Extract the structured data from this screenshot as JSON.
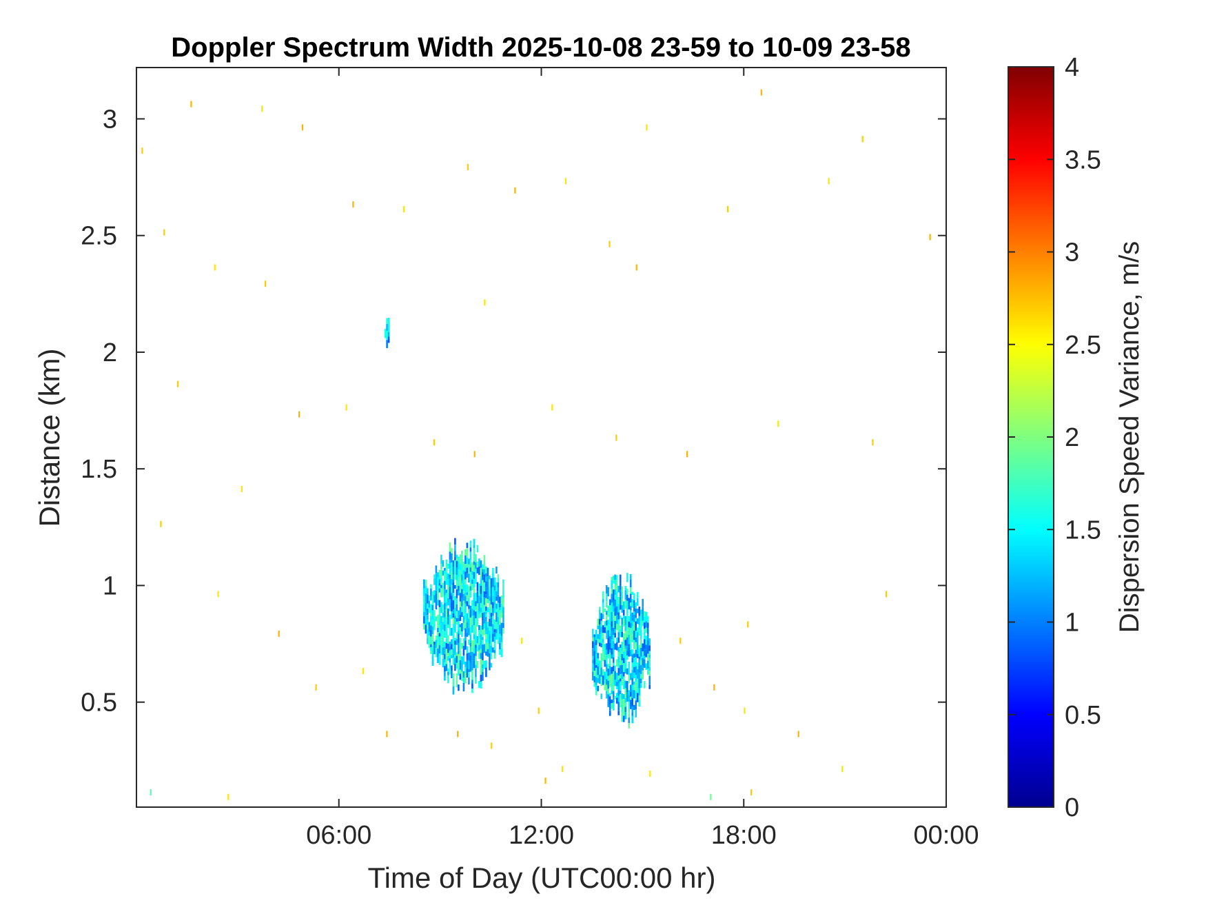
{
  "chart_data": {
    "type": "heatmap",
    "title": "Doppler Spectrum Width 2025-10-08 23-59 to 10-09 23-58",
    "xlabel": "Time of Day (UTC00:00 hr)",
    "ylabel": "Distance (km)",
    "colorbar_label": "Dispersion Speed Variance, m/s",
    "xlim_hours": [
      0,
      24
    ],
    "ylim_km": [
      0.05,
      3.22
    ],
    "x_ticks": [
      {
        "value": 6,
        "label": "06:00"
      },
      {
        "value": 12,
        "label": "12:00"
      },
      {
        "value": 18,
        "label": "18:00"
      },
      {
        "value": 24,
        "label": "00:00"
      }
    ],
    "y_ticks": [
      {
        "value": 0.5,
        "label": "0.5"
      },
      {
        "value": 1,
        "label": "1"
      },
      {
        "value": 1.5,
        "label": "1.5"
      },
      {
        "value": 2,
        "label": "2"
      },
      {
        "value": 2.5,
        "label": "2.5"
      },
      {
        "value": 3,
        "label": "3"
      }
    ],
    "color_range": [
      0,
      4
    ],
    "colorbar_ticks": [
      {
        "value": 0,
        "label": "0"
      },
      {
        "value": 0.5,
        "label": "0.5"
      },
      {
        "value": 1,
        "label": "1"
      },
      {
        "value": 1.5,
        "label": "1.5"
      },
      {
        "value": 2,
        "label": "2"
      },
      {
        "value": 2.5,
        "label": "2.5"
      },
      {
        "value": 3,
        "label": "3"
      },
      {
        "value": 3.5,
        "label": "3.5"
      },
      {
        "value": 4,
        "label": "4"
      }
    ],
    "colormap": "jet",
    "grid": false,
    "clusters": [
      {
        "t_start": 8.5,
        "t_end": 10.9,
        "d_min": 0.6,
        "d_max": 1.15,
        "value": 1.4
      },
      {
        "t_start": 13.5,
        "t_end": 15.2,
        "d_min": 0.45,
        "d_max": 1.0,
        "value": 1.4
      },
      {
        "t_start": 7.35,
        "t_end": 7.5,
        "d_min": 2.05,
        "d_max": 2.15,
        "value": 1.3
      }
    ],
    "sparse_samples": [
      [
        0.15,
        2.85,
        2.7
      ],
      [
        1.6,
        3.05,
        2.8
      ],
      [
        3.7,
        3.03,
        2.6
      ],
      [
        4.9,
        2.95,
        2.8
      ],
      [
        0.8,
        2.5,
        2.7
      ],
      [
        2.3,
        2.35,
        2.6
      ],
      [
        3.8,
        2.28,
        2.7
      ],
      [
        6.4,
        2.62,
        2.8
      ],
      [
        7.9,
        2.6,
        2.6
      ],
      [
        9.8,
        2.78,
        2.7
      ],
      [
        10.3,
        2.2,
        2.6
      ],
      [
        11.2,
        2.68,
        2.8
      ],
      [
        12.7,
        2.72,
        2.6
      ],
      [
        14.0,
        2.45,
        2.7
      ],
      [
        14.8,
        2.35,
        2.8
      ],
      [
        15.1,
        2.95,
        2.6
      ],
      [
        17.5,
        2.6,
        2.7
      ],
      [
        18.5,
        3.1,
        2.8
      ],
      [
        20.5,
        2.72,
        2.6
      ],
      [
        21.5,
        2.9,
        2.7
      ],
      [
        23.5,
        2.48,
        2.8
      ],
      [
        1.2,
        1.85,
        2.7
      ],
      [
        3.1,
        1.4,
        2.6
      ],
      [
        4.8,
        1.72,
        2.8
      ],
      [
        6.2,
        1.75,
        2.6
      ],
      [
        8.8,
        1.6,
        2.7
      ],
      [
        10.0,
        1.55,
        2.8
      ],
      [
        12.3,
        1.75,
        2.6
      ],
      [
        14.2,
        1.62,
        2.7
      ],
      [
        16.3,
        1.55,
        2.8
      ],
      [
        19.0,
        1.68,
        2.6
      ],
      [
        21.8,
        1.6,
        2.7
      ],
      [
        0.7,
        1.25,
        2.7
      ],
      [
        2.4,
        0.95,
        2.6
      ],
      [
        4.2,
        0.78,
        2.8
      ],
      [
        5.3,
        0.55,
        2.7
      ],
      [
        6.7,
        0.62,
        2.6
      ],
      [
        7.4,
        0.35,
        2.8
      ],
      [
        11.4,
        0.75,
        2.6
      ],
      [
        11.9,
        0.45,
        2.7
      ],
      [
        12.1,
        0.15,
        2.8
      ],
      [
        12.6,
        0.2,
        2.6
      ],
      [
        16.1,
        0.75,
        2.7
      ],
      [
        17.1,
        0.55,
        2.8
      ],
      [
        18.0,
        0.45,
        2.6
      ],
      [
        18.1,
        0.82,
        2.7
      ],
      [
        19.6,
        0.35,
        2.8
      ],
      [
        20.9,
        0.2,
        2.6
      ],
      [
        22.2,
        0.95,
        2.7
      ],
      [
        0.4,
        0.1,
        1.8
      ],
      [
        2.7,
        0.08,
        2.6
      ],
      [
        9.5,
        0.35,
        2.8
      ],
      [
        10.5,
        0.3,
        2.7
      ],
      [
        15.2,
        0.18,
        2.6
      ],
      [
        17.0,
        0.08,
        1.9
      ],
      [
        18.2,
        0.1,
        2.7
      ]
    ]
  }
}
